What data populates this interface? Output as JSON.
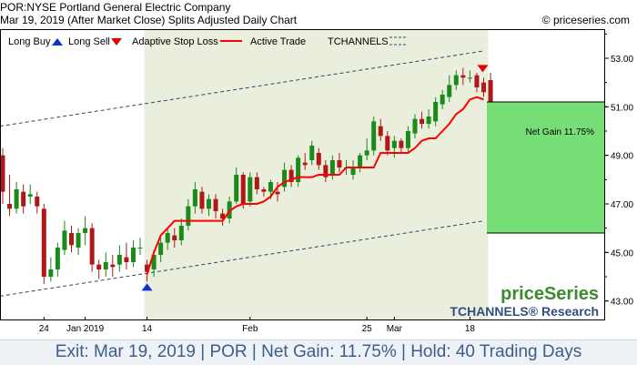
{
  "header": {
    "title": "POR:NYSE Portland General Electric Company",
    "subtitle": "Mar 19, 2019 (After Market Close)  Splits Adjusted Daily Chart",
    "brand": "© priceseries.com"
  },
  "legend": {
    "long_buy": "Long Buy",
    "long_sell": "Long Sell",
    "adaptive_stop": "Adaptive Stop Loss",
    "active_trade": "Active Trade",
    "tchannels": "TCHANNELS"
  },
  "logo": {
    "main": "priceSeries",
    "sub": "TCHANNELS® Research"
  },
  "net_gain_label": "Net Gain 11.75%",
  "footer": {
    "text": "Exit: Mar 19, 2019 | POR | Net Gain: 11.75% | Hold: 40 Trading Days"
  },
  "colors": {
    "up": "#1a8a1a",
    "down": "#b01818",
    "stop": "#ff0000",
    "active_bg": "#eaeedd",
    "gain": "#77dd77",
    "channel": "#334466"
  },
  "chart_data": {
    "type": "candlestick",
    "ylim": [
      42.2,
      54.2
    ],
    "yticks": [
      "53.00",
      "51.00",
      "49.00",
      "47.00",
      "45.00",
      "43.00"
    ],
    "ytick_values": [
      53,
      51,
      49,
      47,
      45,
      43
    ],
    "xtick_labels": [
      {
        "i": 6,
        "label": "24"
      },
      {
        "i": 12,
        "label": "Jan 2019"
      },
      {
        "i": 21,
        "label": "14"
      },
      {
        "i": 36,
        "label": "Feb"
      },
      {
        "i": 53,
        "label": "25"
      },
      {
        "i": 57,
        "label": "Mar"
      },
      {
        "i": 68,
        "label": "18"
      }
    ],
    "candles": [
      [
        49.0,
        47.5,
        47.0,
        49.3
      ],
      [
        47.0,
        46.8,
        46.5,
        48.2
      ],
      [
        46.8,
        47.6,
        46.6,
        47.9
      ],
      [
        47.5,
        46.9,
        46.6,
        47.8
      ],
      [
        47.3,
        47.4,
        47.0,
        47.8
      ],
      [
        47.3,
        46.9,
        46.6,
        47.5
      ],
      [
        46.8,
        44.0,
        43.7,
        47.0
      ],
      [
        44.0,
        44.3,
        43.8,
        44.8
      ],
      [
        44.3,
        45.2,
        44.0,
        45.4
      ],
      [
        45.1,
        45.9,
        44.9,
        46.3
      ],
      [
        45.8,
        45.3,
        45.0,
        46.1
      ],
      [
        45.2,
        45.8,
        44.9,
        46.0
      ],
      [
        45.8,
        46.0,
        45.3,
        46.5
      ],
      [
        46.0,
        44.5,
        44.2,
        46.2
      ],
      [
        44.5,
        44.3,
        43.9,
        44.7
      ],
      [
        44.3,
        44.6,
        44.0,
        45.0
      ],
      [
        44.5,
        44.4,
        44.0,
        44.9
      ],
      [
        44.5,
        44.9,
        44.2,
        45.3
      ],
      [
        44.8,
        44.6,
        44.3,
        45.4
      ],
      [
        44.6,
        45.2,
        44.4,
        45.5
      ],
      [
        45.2,
        45.2,
        44.9,
        45.6
      ],
      [
        44.5,
        44.2,
        43.8,
        44.7
      ],
      [
        44.3,
        44.9,
        44.0,
        45.1
      ],
      [
        44.9,
        45.4,
        44.6,
        45.6
      ],
      [
        45.4,
        45.8,
        45.1,
        46.0
      ],
      [
        45.7,
        45.5,
        45.2,
        46.0
      ],
      [
        45.5,
        46.1,
        45.3,
        46.4
      ],
      [
        46.1,
        46.9,
        45.9,
        47.2
      ],
      [
        46.9,
        47.6,
        46.6,
        47.9
      ],
      [
        47.5,
        46.8,
        46.6,
        47.7
      ],
      [
        46.8,
        47.2,
        46.5,
        47.4
      ],
      [
        47.2,
        46.7,
        46.4,
        47.4
      ],
      [
        46.6,
        46.4,
        46.1,
        46.8
      ],
      [
        46.4,
        47.1,
        46.2,
        47.3
      ],
      [
        47.1,
        48.2,
        47.0,
        48.5
      ],
      [
        48.2,
        47.0,
        46.8,
        48.3
      ],
      [
        47.1,
        48.1,
        46.9,
        48.3
      ],
      [
        48.1,
        47.6,
        47.4,
        48.3
      ],
      [
        47.6,
        47.5,
        47.3,
        47.7
      ],
      [
        47.5,
        47.9,
        47.2,
        48.0
      ],
      [
        47.5,
        47.4,
        47.1,
        47.9
      ],
      [
        47.7,
        48.4,
        47.5,
        48.7
      ],
      [
        48.4,
        47.9,
        47.7,
        48.6
      ],
      [
        47.9,
        48.9,
        47.7,
        49.0
      ],
      [
        48.7,
        48.6,
        48.4,
        49.1
      ],
      [
        48.8,
        49.4,
        48.6,
        49.6
      ],
      [
        49.1,
        48.6,
        48.4,
        49.3
      ],
      [
        48.6,
        48.1,
        47.9,
        48.8
      ],
      [
        48.2,
        48.8,
        48.0,
        49.0
      ],
      [
        48.8,
        48.5,
        48.3,
        49.1
      ],
      [
        48.5,
        48.5,
        48.2,
        48.8
      ],
      [
        48.2,
        48.5,
        48.0,
        48.8
      ],
      [
        48.5,
        49.0,
        48.3,
        49.1
      ],
      [
        49.0,
        49.2,
        48.8,
        49.7
      ],
      [
        49.2,
        50.4,
        49.0,
        50.6
      ],
      [
        50.2,
        49.8,
        49.6,
        50.5
      ],
      [
        49.8,
        49.2,
        49.0,
        50.0
      ],
      [
        49.3,
        49.6,
        48.9,
        49.8
      ],
      [
        49.6,
        49.3,
        49.1,
        49.7
      ],
      [
        49.3,
        50.0,
        49.1,
        50.2
      ],
      [
        49.9,
        50.5,
        49.7,
        50.7
      ],
      [
        50.5,
        50.3,
        50.1,
        50.8
      ],
      [
        50.3,
        50.6,
        50.1,
        50.9
      ],
      [
        50.4,
        51.2,
        50.2,
        51.4
      ],
      [
        51.1,
        51.5,
        50.9,
        51.7
      ],
      [
        51.4,
        51.9,
        51.2,
        52.3
      ],
      [
        51.9,
        52.3,
        51.7,
        52.5
      ],
      [
        52.3,
        52.2,
        51.9,
        52.6
      ],
      [
        52.2,
        52.2,
        52.0,
        52.5
      ],
      [
        52.3,
        51.8,
        51.6,
        52.4
      ],
      [
        52.0,
        51.6,
        51.4,
        52.2
      ],
      [
        52.1,
        50.9,
        50.7,
        52.4
      ]
    ],
    "adaptive_stop": [
      [
        21,
        44.1
      ],
      [
        22,
        45.0
      ],
      [
        23,
        45.7
      ],
      [
        24,
        46.0
      ],
      [
        25,
        46.3
      ],
      [
        26,
        46.3
      ],
      [
        27,
        46.3
      ],
      [
        28,
        46.3
      ],
      [
        29,
        46.3
      ],
      [
        30,
        46.3
      ],
      [
        31,
        46.3
      ],
      [
        32,
        46.3
      ],
      [
        33,
        46.7
      ],
      [
        34,
        46.9
      ],
      [
        35,
        47.0
      ],
      [
        36,
        47.0
      ],
      [
        37,
        47.0
      ],
      [
        38,
        47.1
      ],
      [
        39,
        47.3
      ],
      [
        40,
        47.7
      ],
      [
        41,
        47.9
      ],
      [
        42,
        48.0
      ],
      [
        43,
        48.1
      ],
      [
        44,
        48.1
      ],
      [
        45,
        48.1
      ],
      [
        46,
        48.2
      ],
      [
        47,
        48.2
      ],
      [
        48,
        48.2
      ],
      [
        49,
        48.2
      ],
      [
        50,
        48.5
      ],
      [
        51,
        48.5
      ],
      [
        52,
        48.5
      ],
      [
        53,
        48.5
      ],
      [
        54,
        48.5
      ],
      [
        55,
        49.1
      ],
      [
        56,
        49.1
      ],
      [
        57,
        49.1
      ],
      [
        58,
        49.1
      ],
      [
        59,
        49.1
      ],
      [
        60,
        49.3
      ],
      [
        61,
        49.6
      ],
      [
        62,
        49.7
      ],
      [
        63,
        49.7
      ],
      [
        64,
        50.0
      ],
      [
        65,
        50.3
      ],
      [
        66,
        50.7
      ],
      [
        67,
        50.9
      ],
      [
        68,
        51.3
      ],
      [
        69,
        51.4
      ],
      [
        70,
        51.3
      ]
    ],
    "channel_upper": [
      [
        0,
        50.2
      ],
      [
        70,
        53.3
      ]
    ],
    "channel_lower": [
      [
        0,
        43.2
      ],
      [
        70,
        46.3
      ]
    ],
    "active_trade": {
      "start": 21,
      "end": 70
    },
    "entry_index": 21,
    "exit_index": 70,
    "gain_box": {
      "low": 45.8,
      "high": 51.2
    }
  }
}
